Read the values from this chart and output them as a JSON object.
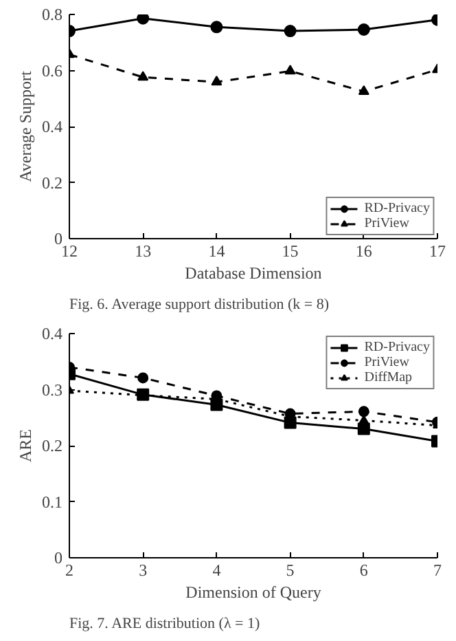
{
  "chart_data": [
    {
      "type": "line",
      "xlabel": "Database Dimension",
      "ylabel": "Average Support",
      "x": [
        12,
        13,
        14,
        15,
        16,
        17
      ],
      "xlim": [
        12,
        17
      ],
      "xticks": [
        12,
        13,
        14,
        15,
        16,
        17
      ],
      "ylim": [
        0,
        0.8
      ],
      "yticks": [
        0,
        0.2,
        0.4,
        0.6,
        0.8
      ],
      "legend": "bottom right",
      "grid": false,
      "series": [
        {
          "name": "RD-Privacy",
          "color": "#000000",
          "marker": "circle",
          "line_style": "solid",
          "values": [
            0.741,
            0.786,
            0.755,
            0.741,
            0.746,
            0.781
          ]
        },
        {
          "name": "PriView",
          "color": "#000000",
          "marker": "triangle",
          "line_style": "dashed",
          "values": [
            0.657,
            0.576,
            0.559,
            0.598,
            0.525,
            0.603
          ]
        }
      ],
      "annotations": [
        "Fig. 6. Average support distribution (k = 8)"
      ]
    },
    {
      "type": "line",
      "xlabel": "Dimension of Query",
      "ylabel": "ARE",
      "x": [
        2,
        3,
        4,
        5,
        6,
        7
      ],
      "xlim": [
        2,
        7
      ],
      "xticks": [
        2,
        3,
        4,
        5,
        6,
        7
      ],
      "ylim": [
        0,
        0.4
      ],
      "yticks": [
        0,
        0.1,
        0.2,
        0.3,
        0.4
      ],
      "legend": "top right",
      "grid": false,
      "series": [
        {
          "name": "RD-Privacy",
          "color": "#000000",
          "marker": "square",
          "line_style": "solid",
          "values": [
            0.328,
            0.291,
            0.273,
            0.241,
            0.23,
            0.208
          ]
        },
        {
          "name": "PriView",
          "color": "#000000",
          "marker": "circle",
          "line_style": "dashed",
          "values": [
            0.34,
            0.321,
            0.289,
            0.257,
            0.261,
            0.242
          ]
        },
        {
          "name": "DiffMap",
          "color": "#000000",
          "marker": "triangle",
          "line_style": "dotted",
          "values": [
            0.298,
            0.29,
            0.283,
            0.252,
            0.245,
            0.236
          ]
        }
      ],
      "annotations": [
        "Fig. 7. ARE distribution (λ = 1)"
      ]
    }
  ]
}
